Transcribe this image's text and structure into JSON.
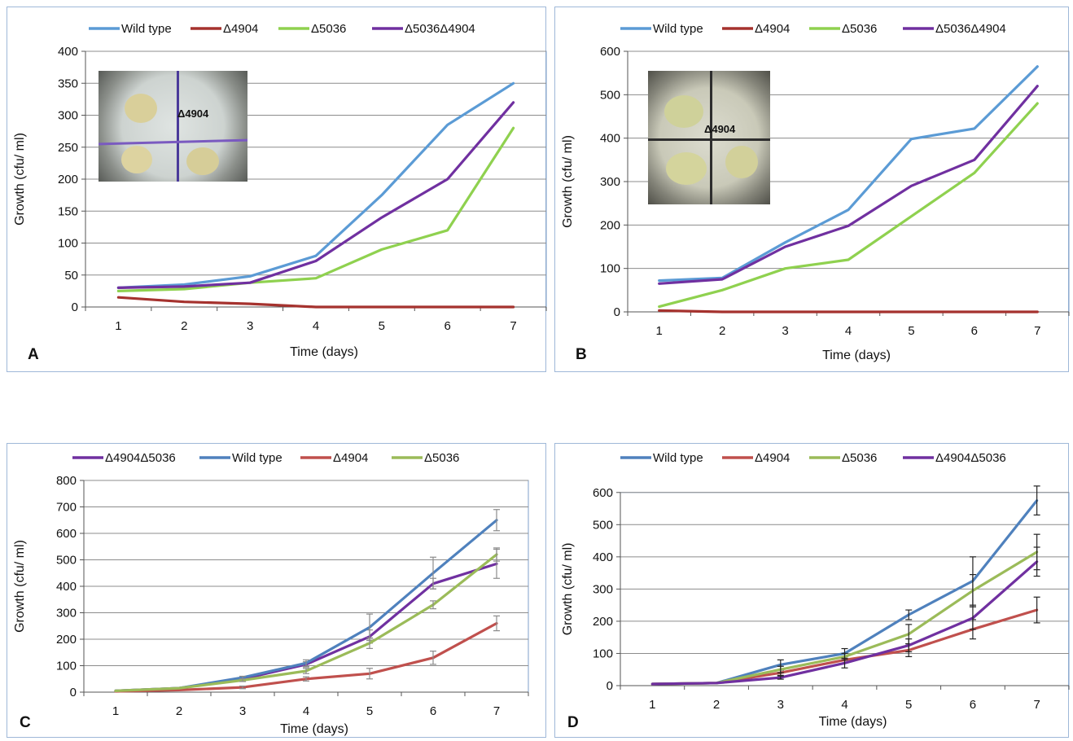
{
  "chart_data": [
    {
      "type": "line",
      "panel_label": "A",
      "xlabel": "Time (days)",
      "ylabel": "Growth (cfu/ ml)",
      "categories": [
        1,
        2,
        3,
        4,
        5,
        6,
        7
      ],
      "ylim": [
        0,
        400
      ],
      "yticks": [
        0,
        50,
        100,
        150,
        200,
        250,
        300,
        350,
        400
      ],
      "grid": true,
      "legend_position": "top",
      "inset_label": "Δ4904",
      "series": [
        {
          "name": "Wild type",
          "color": "#5b9bd5",
          "values": [
            30,
            35,
            48,
            80,
            175,
            285,
            350
          ]
        },
        {
          "name": "Δ4904",
          "color": "#a5322e",
          "values": [
            15,
            8,
            5,
            0,
            0,
            0,
            0
          ]
        },
        {
          "name": "Δ5036",
          "color": "#8fd14f",
          "values": [
            25,
            28,
            38,
            45,
            90,
            120,
            280
          ]
        },
        {
          "name": "Δ5036Δ4904",
          "color": "#7030a0",
          "values": [
            30,
            32,
            38,
            72,
            140,
            200,
            320
          ]
        }
      ]
    },
    {
      "type": "line",
      "panel_label": "B",
      "xlabel": "Time (days)",
      "ylabel": "Growth (cfu/ ml)",
      "categories": [
        1,
        2,
        3,
        4,
        5,
        6,
        7
      ],
      "ylim": [
        0,
        600
      ],
      "yticks": [
        0,
        100,
        200,
        300,
        400,
        500,
        600
      ],
      "grid": true,
      "legend_position": "top",
      "inset_label": "Δ4904",
      "series": [
        {
          "name": "Wild type",
          "color": "#5b9bd5",
          "values": [
            72,
            78,
            160,
            235,
            398,
            422,
            565
          ]
        },
        {
          "name": "Δ4904",
          "color": "#a5322e",
          "values": [
            3,
            0,
            0,
            0,
            0,
            0,
            0
          ]
        },
        {
          "name": "Δ5036",
          "color": "#8fd14f",
          "values": [
            12,
            50,
            100,
            120,
            220,
            320,
            480
          ]
        },
        {
          "name": "Δ5036Δ4904",
          "color": "#7030a0",
          "values": [
            65,
            75,
            150,
            198,
            290,
            350,
            520
          ]
        }
      ]
    },
    {
      "type": "line",
      "panel_label": "C",
      "xlabel": "Time (days)",
      "ylabel": "Growth (cfu/ ml)",
      "categories": [
        1,
        2,
        3,
        4,
        5,
        6,
        7
      ],
      "ylim": [
        0,
        800
      ],
      "yticks": [
        0,
        100,
        200,
        300,
        400,
        500,
        600,
        700,
        800
      ],
      "grid": true,
      "legend_position": "top",
      "series": [
        {
          "name": "Δ4904Δ5036",
          "color": "#7030a0",
          "values": [
            5,
            15,
            50,
            105,
            210,
            410,
            485
          ],
          "errors": [
            0,
            0,
            5,
            10,
            25,
            20,
            55
          ]
        },
        {
          "name": "Wild type",
          "color": "#4f81bd",
          "values": [
            5,
            15,
            55,
            110,
            245,
            450,
            650
          ],
          "errors": [
            0,
            0,
            5,
            12,
            50,
            60,
            40
          ]
        },
        {
          "name": "Δ4904",
          "color": "#c0504d",
          "values": [
            3,
            8,
            18,
            50,
            70,
            130,
            260
          ],
          "errors": [
            0,
            0,
            5,
            8,
            20,
            25,
            28
          ]
        },
        {
          "name": "Δ5036",
          "color": "#9bbb59",
          "values": [
            5,
            15,
            45,
            80,
            185,
            330,
            520
          ],
          "errors": [
            0,
            0,
            5,
            10,
            20,
            15,
            25
          ]
        }
      ]
    },
    {
      "type": "line",
      "panel_label": "D",
      "xlabel": "Time (days)",
      "ylabel": "Growth (cfu/ ml)",
      "categories": [
        1,
        2,
        3,
        4,
        5,
        6,
        7
      ],
      "ylim": [
        0,
        650
      ],
      "yticks": [
        0,
        100,
        200,
        300,
        400,
        500,
        600
      ],
      "grid": true,
      "legend_position": "top",
      "series": [
        {
          "name": "Wild type",
          "color": "#4f81bd",
          "values": [
            5,
            8,
            65,
            100,
            220,
            325,
            575
          ],
          "errors": [
            0,
            0,
            15,
            15,
            15,
            75,
            45
          ]
        },
        {
          "name": "Δ4904",
          "color": "#c0504d",
          "values": [
            5,
            8,
            40,
            80,
            110,
            175,
            235
          ],
          "errors": [
            0,
            0,
            8,
            10,
            20,
            30,
            40
          ]
        },
        {
          "name": "Δ5036",
          "color": "#9bbb59",
          "values": [
            5,
            8,
            50,
            90,
            160,
            295,
            415
          ],
          "errors": [
            0,
            0,
            10,
            10,
            30,
            50,
            55
          ]
        },
        {
          "name": "Δ4904Δ5036",
          "color": "#7030a0",
          "values": [
            5,
            8,
            25,
            70,
            125,
            210,
            385
          ],
          "errors": [
            0,
            0,
            5,
            15,
            20,
            35,
            45
          ]
        }
      ]
    }
  ]
}
